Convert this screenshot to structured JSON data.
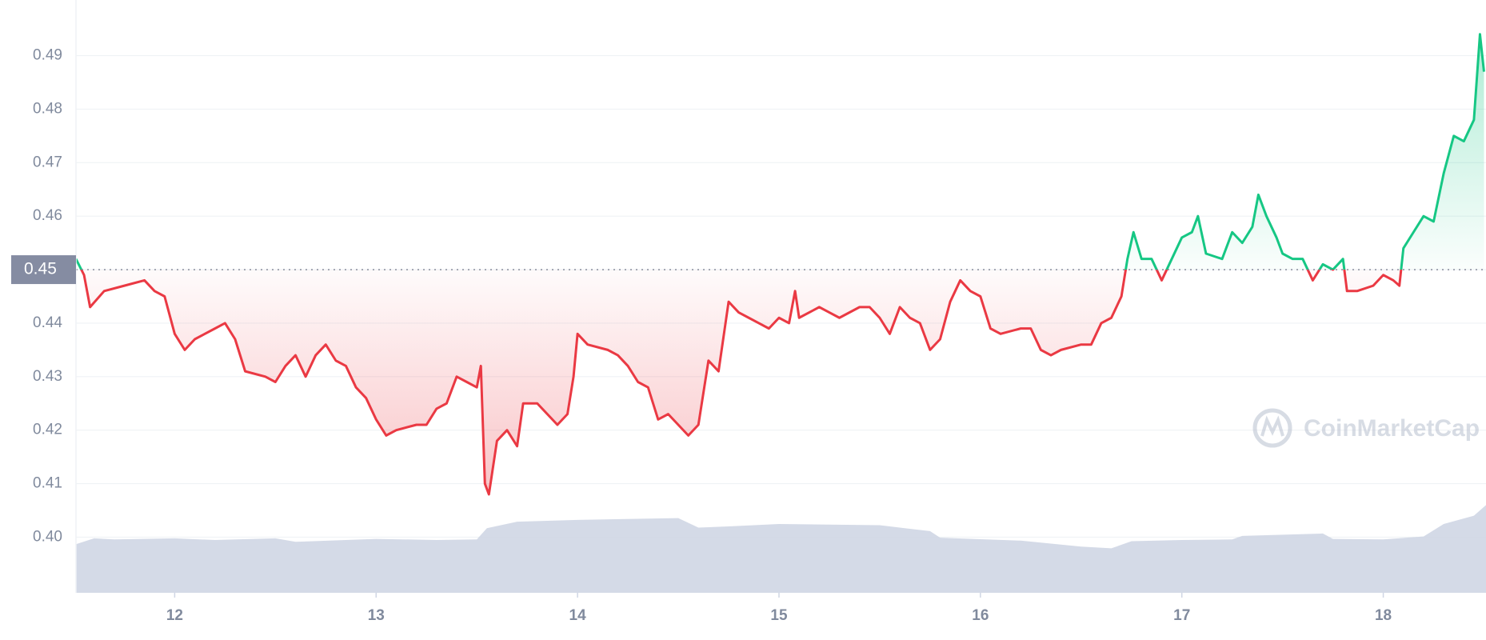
{
  "chart_data": {
    "type": "line",
    "xlim": [
      11.51,
      18.51
    ],
    "xticks": [
      12,
      13,
      14,
      15,
      16,
      17,
      18
    ],
    "ylim": [
      0.3896,
      0.5004
    ],
    "yticks": [
      {
        "value": 0.4,
        "label": "0.40"
      },
      0.41,
      0.42,
      0.43,
      0.44,
      0.45,
      0.46,
      0.47,
      0.48,
      0.49
    ],
    "grid": true,
    "baseline": 0.45,
    "colors": {
      "above": "#16c784",
      "below": "#ea3943",
      "volume": "#cfd6e4"
    },
    "watermark": "CoinMarketCap",
    "series": [
      {
        "x": [
          11.51,
          11.55,
          11.58,
          11.65,
          11.75,
          11.85,
          11.9,
          11.95,
          12.0,
          12.05,
          12.1,
          12.2,
          12.25,
          12.3,
          12.35,
          12.45,
          12.5,
          12.55,
          12.6,
          12.65,
          12.7,
          12.75,
          12.8,
          12.85,
          12.9,
          12.95,
          13.0,
          13.05,
          13.1,
          13.2,
          13.25,
          13.3,
          13.35,
          13.4,
          13.45,
          13.5,
          13.52,
          13.54,
          13.56,
          13.6,
          13.65,
          13.7,
          13.73,
          13.8,
          13.9,
          13.95,
          13.98,
          14.0,
          14.05,
          14.15,
          14.2,
          14.25,
          14.3,
          14.35,
          14.4,
          14.45,
          14.5,
          14.55,
          14.6,
          14.65,
          14.7,
          14.75,
          14.8,
          14.85,
          14.9,
          14.95,
          15.0,
          15.05,
          15.08,
          15.1,
          15.2,
          15.25,
          15.3,
          15.4,
          15.45,
          15.5,
          15.55,
          15.6,
          15.65,
          15.7,
          15.75,
          15.8,
          15.85,
          15.9,
          15.95,
          16.0,
          16.05,
          16.1,
          16.2,
          16.25,
          16.3,
          16.35,
          16.4,
          16.5,
          16.55,
          16.6,
          16.65,
          16.7,
          16.73,
          16.76,
          16.8,
          16.85,
          16.9,
          16.95,
          17.0,
          17.05,
          17.08,
          17.12,
          17.2,
          17.25,
          17.3,
          17.35,
          17.38,
          17.42,
          17.47,
          17.5,
          17.55,
          17.6,
          17.65,
          17.7,
          17.75,
          17.8,
          17.82,
          17.87,
          17.95,
          18.0,
          18.05,
          18.08,
          18.1,
          18.15,
          18.2,
          18.25,
          18.3,
          18.35,
          18.4,
          18.45,
          18.48,
          18.5
        ],
        "values": [
          0.452,
          0.449,
          0.443,
          0.446,
          0.447,
          0.448,
          0.446,
          0.445,
          0.438,
          0.435,
          0.437,
          0.439,
          0.44,
          0.437,
          0.431,
          0.43,
          0.429,
          0.432,
          0.434,
          0.43,
          0.434,
          0.436,
          0.433,
          0.432,
          0.428,
          0.426,
          0.422,
          0.419,
          0.42,
          0.421,
          0.421,
          0.424,
          0.425,
          0.43,
          0.429,
          0.428,
          0.432,
          0.41,
          0.408,
          0.418,
          0.42,
          0.417,
          0.425,
          0.425,
          0.421,
          0.423,
          0.43,
          0.438,
          0.436,
          0.435,
          0.434,
          0.432,
          0.429,
          0.428,
          0.422,
          0.423,
          0.421,
          0.419,
          0.421,
          0.433,
          0.431,
          0.444,
          0.442,
          0.441,
          0.44,
          0.439,
          0.441,
          0.44,
          0.446,
          0.441,
          0.443,
          0.442,
          0.441,
          0.443,
          0.443,
          0.441,
          0.438,
          0.443,
          0.441,
          0.44,
          0.435,
          0.437,
          0.444,
          0.448,
          0.446,
          0.445,
          0.439,
          0.438,
          0.439,
          0.439,
          0.435,
          0.434,
          0.435,
          0.436,
          0.436,
          0.44,
          0.441,
          0.445,
          0.452,
          0.457,
          0.452,
          0.452,
          0.448,
          0.452,
          0.456,
          0.457,
          0.46,
          0.453,
          0.452,
          0.457,
          0.455,
          0.458,
          0.464,
          0.46,
          0.456,
          0.453,
          0.452,
          0.452,
          0.448,
          0.451,
          0.45,
          0.452,
          0.446,
          0.446,
          0.447,
          0.449,
          0.448,
          0.447,
          0.454,
          0.457,
          0.46,
          0.459,
          0.468,
          0.475,
          0.474,
          0.478,
          0.494,
          0.487
        ]
      }
    ],
    "volume": {
      "y2lim": [
        0,
        100
      ],
      "x": [
        11.51,
        11.6,
        11.7,
        12.0,
        12.2,
        12.5,
        12.6,
        13.0,
        13.3,
        13.5,
        13.55,
        13.7,
        14.0,
        14.5,
        14.6,
        14.75,
        15.0,
        15.5,
        15.75,
        15.8,
        16.2,
        16.5,
        16.65,
        16.75,
        17.0,
        17.25,
        17.3,
        17.7,
        17.75,
        18.0,
        18.2,
        18.3,
        18.45,
        18.51
      ],
      "values": [
        8.2,
        9.2,
        9.0,
        9.2,
        8.9,
        9.2,
        8.6,
        9.1,
        8.9,
        9.0,
        10.9,
        12.0,
        12.3,
        12.6,
        11.0,
        11.2,
        11.6,
        11.4,
        10.4,
        9.3,
        8.8,
        7.8,
        7.5,
        8.7,
        8.9,
        9.0,
        9.6,
        10.0,
        9.1,
        9.0,
        9.5,
        11.6,
        13.0,
        14.8
      ]
    }
  }
}
